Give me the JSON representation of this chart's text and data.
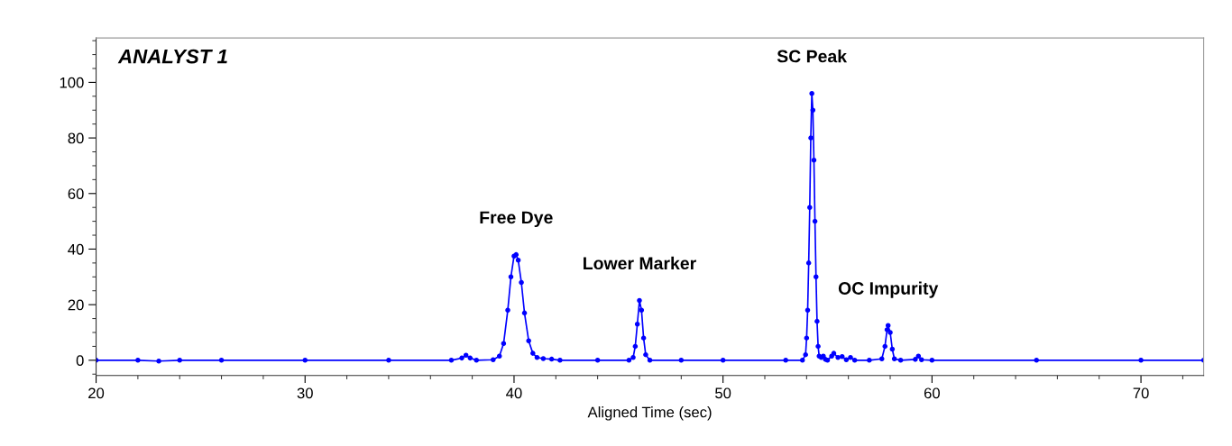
{
  "chart_data": {
    "type": "line",
    "title": "ANALYST 1",
    "xlabel": "Aligned Time (sec)",
    "xlim": [
      20,
      73
    ],
    "xticks": [
      20,
      30,
      40,
      50,
      60,
      70
    ],
    "ylim": [
      -5.5,
      116
    ],
    "yticks": [
      0,
      20,
      40,
      60,
      80,
      100
    ],
    "grid": false,
    "marker": "circle",
    "line_style": "solid",
    "series": [
      {
        "color": "#0000ff",
        "x": [
          20,
          22,
          23,
          24,
          26,
          30,
          34,
          37,
          37.5,
          37.7,
          37.9,
          38.2,
          39,
          39.3,
          39.5,
          39.7,
          39.85,
          40.0,
          40.1,
          40.2,
          40.35,
          40.5,
          40.7,
          40.9,
          41.1,
          41.4,
          41.8,
          42.2,
          44,
          45.5,
          45.7,
          45.8,
          45.9,
          46.0,
          46.1,
          46.2,
          46.3,
          46.5,
          48,
          50,
          53,
          53.8,
          53.95,
          54.0,
          54.05,
          54.1,
          54.15,
          54.2,
          54.25,
          54.3,
          54.35,
          54.4,
          54.45,
          54.5,
          54.55,
          54.6,
          54.7,
          54.8,
          54.9,
          55.0,
          55.2,
          55.3,
          55.5,
          55.7,
          55.9,
          56.1,
          56.3,
          57.0,
          57.6,
          57.75,
          57.85,
          57.9,
          58.0,
          58.1,
          58.2,
          58.5,
          59.2,
          59.35,
          59.5,
          60,
          65,
          70,
          73
        ],
        "values": [
          0,
          0,
          -0.3,
          0,
          0,
          0,
          0,
          0,
          0.8,
          1.8,
          0.8,
          0,
          0.2,
          1.5,
          6,
          18,
          30,
          37.5,
          38,
          36,
          28,
          17,
          7,
          2.5,
          1,
          0.6,
          0.4,
          0,
          0,
          0,
          1,
          5,
          13,
          21.5,
          18,
          8,
          2,
          0,
          0,
          0,
          0,
          0,
          2,
          8,
          18,
          35,
          55,
          80,
          96,
          90,
          72,
          50,
          30,
          14,
          5,
          1.5,
          1.0,
          1.5,
          0.3,
          0,
          1.5,
          2.5,
          1,
          1.3,
          0.2,
          1,
          0,
          0,
          0.5,
          5,
          11,
          12.5,
          10,
          4,
          0.5,
          0,
          0.3,
          1.5,
          0.2,
          0,
          0,
          0,
          0
        ]
      }
    ],
    "annotations": [
      {
        "text": "Free Dye",
        "x": 40.1,
        "y": 38
      },
      {
        "text": "Lower Marker",
        "x": 46.0,
        "y": 21.5
      },
      {
        "text": "SC Peak",
        "x": 54.25,
        "y": 96
      },
      {
        "text": "OC Impurity",
        "x": 57.9,
        "y": 12.5
      }
    ]
  }
}
